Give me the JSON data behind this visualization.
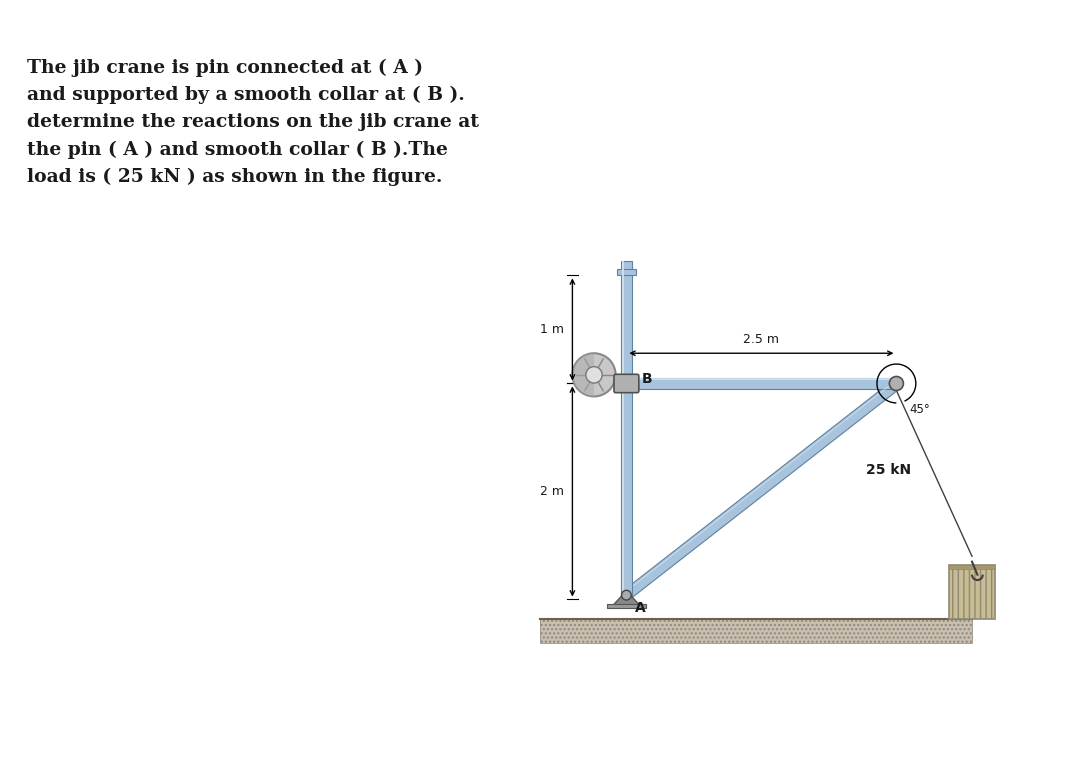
{
  "title_text": "The jib crane is pin connected at ( A )\nand supported by a smooth collar at ( B ).\ndetermine the reactions on the jib crane at\nthe pin ( A ) and smooth collar ( B ).The\nload is ( 25 kN ) as shown in the figure.",
  "bg_color": "#ffffff",
  "fig_width": 10.8,
  "fig_height": 7.79,
  "steel_color": "#a8c4dc",
  "steel_dark": "#6080a0",
  "steel_light": "#d0e4f0",
  "ground_color": "#c8bfb0",
  "block_face": "#c8bc94",
  "block_edge": "#908870",
  "text_color": "#1a1a1a",
  "dim_25m": "2.5 m",
  "dim_1m": "1 m",
  "dim_2m": "2 m",
  "label_A": "A",
  "label_B": "B",
  "label_45": "45°",
  "label_load": "25 kN"
}
